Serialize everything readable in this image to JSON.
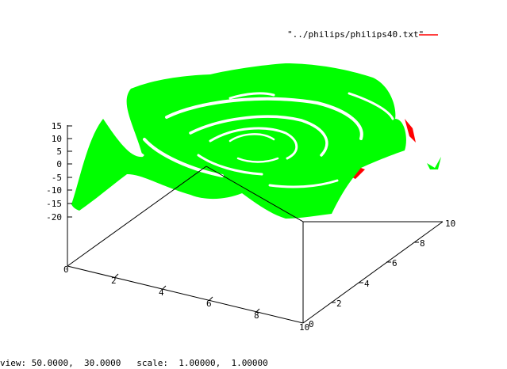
{
  "chart_data": {
    "type": "surface3d",
    "legend": [
      "\"../philips/philips40.txt\""
    ],
    "colors": {
      "top": "#00ff00",
      "bottom": "#ff0000",
      "axis": "#000000"
    },
    "z_ticks": [
      "15",
      "10",
      "5",
      "0",
      "-5",
      "-10",
      "-15",
      "-20"
    ],
    "x_ticks": [
      "0",
      "2",
      "4",
      "6",
      "8",
      "10"
    ],
    "y_ticks": [
      "0",
      "2",
      "4",
      "6",
      "8",
      "10"
    ],
    "xlim": [
      0,
      10
    ],
    "ylim": [
      0,
      10
    ],
    "zlim": [
      -20,
      15
    ]
  },
  "status": {
    "view_label": "view:",
    "view_values": "50.0000,  30.0000",
    "scale_label": "scale:",
    "scale_values": "1.00000,  1.00000"
  }
}
